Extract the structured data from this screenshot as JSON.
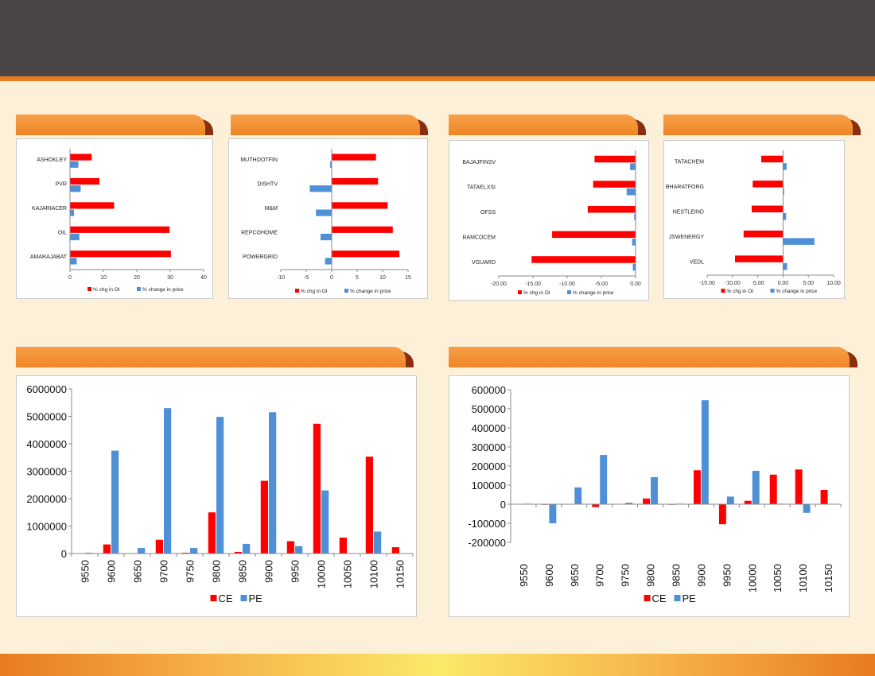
{
  "header": {
    "title": ""
  },
  "sections": {
    "oi_gainers_price_up": "",
    "oi_gainers_price_down": "",
    "oi_losers_price_down": "",
    "oi_losers_price_up": "",
    "oi_distribution": "",
    "oi_change_distribution": ""
  },
  "colors": {
    "series_oi": "#ff0000",
    "series_price": "#4f8fd6",
    "ribbon": "#ef8524",
    "header": "#4a4645"
  },
  "chart_data": [
    {
      "type": "bar",
      "orientation": "horizontal",
      "categories": [
        "ASHOKLEY",
        "PVR",
        "KAJARIACER",
        "OIL",
        "AMARAJABAT"
      ],
      "series": [
        {
          "name": "% chg in OI",
          "values": [
            6.5,
            8.8,
            13.2,
            29.8,
            30.2
          ]
        },
        {
          "name": "% change in price",
          "values": [
            2.5,
            3.2,
            1.2,
            2.8,
            2.0
          ]
        }
      ],
      "xlim": [
        0,
        40
      ],
      "xticks": [
        "0",
        "10",
        "20",
        "30",
        "40"
      ],
      "legend": "bottom"
    },
    {
      "type": "bar",
      "orientation": "horizontal",
      "categories": [
        "MUTHOOTFIN",
        "DISHTV",
        "M&M",
        "REPCOHOME",
        "POWERGRID"
      ],
      "series": [
        {
          "name": "% chg in OI",
          "values": [
            8.7,
            9.1,
            11.0,
            12.0,
            13.3
          ]
        },
        {
          "name": "% change in price",
          "values": [
            -0.3,
            -4.3,
            -3.1,
            -2.2,
            -1.3
          ]
        }
      ],
      "xlim": [
        -10,
        15
      ],
      "xticks": [
        "-10",
        "-5",
        "0",
        "5",
        "10",
        "15"
      ],
      "legend": "bottom"
    },
    {
      "type": "bar",
      "orientation": "horizontal",
      "categories": [
        "BAJAJFINSV",
        "TATAELXSI",
        "OFSS",
        "RAMCOCEM",
        "VGUARD"
      ],
      "series": [
        {
          "name": "% chg in OI",
          "values": [
            -6.0,
            -6.2,
            -7.0,
            -12.2,
            -15.2
          ]
        },
        {
          "name": "% change in price",
          "values": [
            -0.8,
            -1.3,
            -0.2,
            -0.5,
            -0.4
          ]
        }
      ],
      "xlim": [
        -20,
        0
      ],
      "xticks": [
        "-20.00",
        "-15.00",
        "-10.00",
        "-5.00",
        "0.00"
      ],
      "legend": "bottom"
    },
    {
      "type": "bar",
      "orientation": "horizontal",
      "categories": [
        "TATACHEM",
        "BHARATFORG",
        "NESTLEIND",
        "JSWENERGY",
        "VEDL"
      ],
      "series": [
        {
          "name": "% chg in OI",
          "values": [
            -4.3,
            -6.0,
            -6.2,
            -7.8,
            -9.5
          ]
        },
        {
          "name": "% change in price",
          "values": [
            0.7,
            0.2,
            0.6,
            6.2,
            0.8
          ]
        }
      ],
      "xlim": [
        -15,
        10
      ],
      "xticks": [
        "-15.00",
        "-10.00",
        "-5.00",
        "0.00",
        "5.00",
        "10.00"
      ],
      "legend": "bottom"
    },
    {
      "type": "bar",
      "categories": [
        "9550",
        "9600",
        "9650",
        "9700",
        "9750",
        "9800",
        "9850",
        "9900",
        "9950",
        "10000",
        "10050",
        "10100",
        "10150"
      ],
      "series": [
        {
          "name": "CE",
          "values": [
            0,
            330000,
            15000,
            500000,
            30000,
            1500000,
            60000,
            2650000,
            450000,
            4730000,
            580000,
            3530000,
            230000
          ]
        },
        {
          "name": "PE",
          "values": [
            30000,
            3750000,
            200000,
            5300000,
            200000,
            4980000,
            350000,
            5150000,
            270000,
            2300000,
            0,
            800000,
            0
          ]
        }
      ],
      "ylim": [
        0,
        6000000
      ],
      "yticks": [
        "0",
        "1000000",
        "2000000",
        "3000000",
        "4000000",
        "5000000",
        "6000000"
      ],
      "legend": "bottom"
    },
    {
      "type": "bar",
      "categories": [
        "9550",
        "9600",
        "9650",
        "9700",
        "9750",
        "9800",
        "9850",
        "9900",
        "9950",
        "10000",
        "10050",
        "10100",
        "10150"
      ],
      "series": [
        {
          "name": "CE",
          "values": [
            0,
            -3000,
            0,
            -15000,
            0,
            30000,
            -3000,
            178000,
            -105000,
            18000,
            155000,
            182000,
            75000
          ]
        },
        {
          "name": "PE",
          "values": [
            3000,
            -100000,
            88000,
            258000,
            8000,
            142000,
            3000,
            545000,
            40000,
            175000,
            3000,
            -45000,
            0
          ]
        }
      ],
      "ylim": [
        -200000,
        600000
      ],
      "yticks": [
        "-200000",
        "-100000",
        "0",
        "100000",
        "200000",
        "300000",
        "400000",
        "500000",
        "600000"
      ],
      "legend": "bottom"
    }
  ]
}
